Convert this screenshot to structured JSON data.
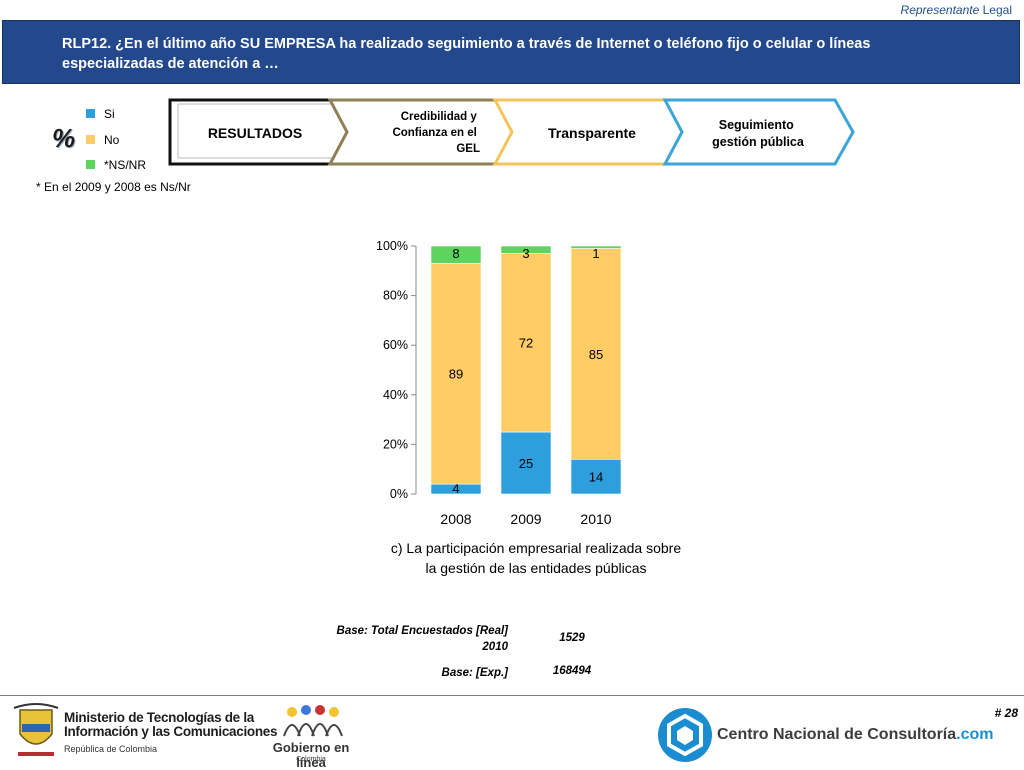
{
  "header": {
    "role_label": "Representante",
    "role_suffix": "Legal",
    "title": "RLP12. ¿En el último año SU EMPRESA ha realizado seguimiento a través de Internet o teléfono fijo o celular o líneas especializadas de atención a …"
  },
  "legend": {
    "symbol": "%",
    "items": [
      {
        "label": "Si",
        "color": "#2e9fdc"
      },
      {
        "label": "No",
        "color": "#ffcc66"
      },
      {
        "label": "*NS/NR",
        "color": "#5ed35e"
      }
    ],
    "note": "* En el 2009 y 2008 es Ns/Nr"
  },
  "process_steps": [
    {
      "label": "RESULTADOS",
      "border_color": "#111111"
    },
    {
      "label": "Credibilidad y Confianza en el GEL",
      "border_color": "#8e7f55"
    },
    {
      "label": "Transparente",
      "border_color": "#f2c45a"
    },
    {
      "label": "Seguimiento gestión pública",
      "border_color": "#3aa5d6"
    }
  ],
  "chart_data": {
    "type": "bar",
    "stacked": true,
    "categories": [
      "2008",
      "2009",
      "2010"
    ],
    "series": [
      {
        "name": "Si",
        "values": [
          4,
          25,
          14
        ],
        "color": "#2e9fdc"
      },
      {
        "name": "No",
        "values": [
          89,
          72,
          85
        ],
        "color": "#ffcc66"
      },
      {
        "name": "*NS/NR",
        "values": [
          8,
          3,
          1
        ],
        "color": "#5ed35e"
      }
    ],
    "ylim": [
      0,
      100
    ],
    "yticks": [
      "0%",
      "20%",
      "40%",
      "60%",
      "80%",
      "100%"
    ],
    "caption": "c) La participación empresarial realizada sobre la gestión de las entidades públicas"
  },
  "base": {
    "total_label": "Base: Total Encuestados [Real] 2010",
    "total_value": "1529",
    "exp_label": "Base: [Exp.]",
    "exp_value": "168494"
  },
  "footer": {
    "page_number": "# 28",
    "ministry_line1": "Ministerio de Tecnologías de la",
    "ministry_line2": "Información y las Comunicaciones",
    "ministry_sub": "República de Colombia",
    "gel_name": "Gobierno en línea",
    "gel_sub": "Colombia",
    "cnc_name": "Centro Nacional de Consultoría",
    "cnc_suffix": ".com"
  }
}
